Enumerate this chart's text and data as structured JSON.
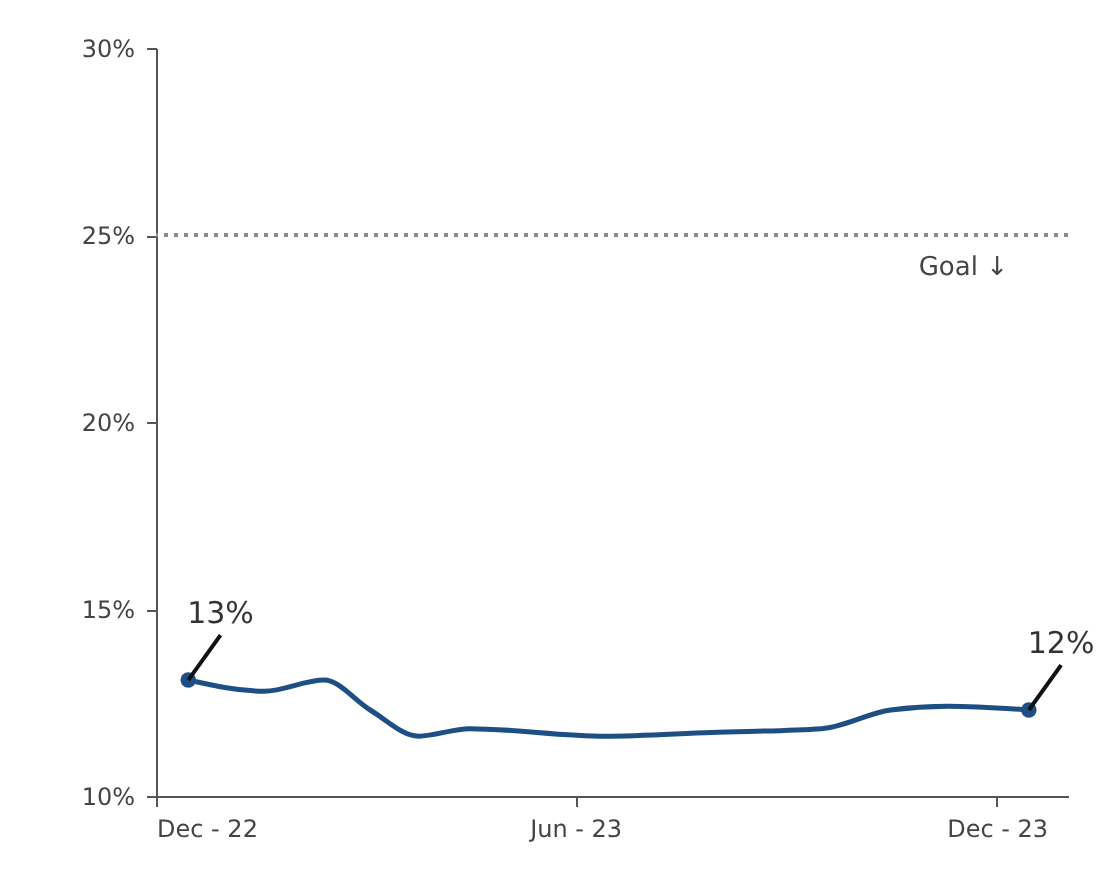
{
  "chart_data": {
    "type": "line",
    "x": [
      "2022-12-15",
      "2023-01-17",
      "2023-02-12",
      "2023-03-04",
      "2023-03-25",
      "2023-04-16",
      "2023-06-14",
      "2023-07-30",
      "2023-09-16",
      "2023-10-16",
      "2023-11-10",
      "2023-12-15"
    ],
    "series": [
      {
        "color": "#1d4f85",
        "values": [
          13.1,
          12.8,
          13.1,
          12.3,
          11.6,
          11.8,
          11.6,
          11.7,
          11.8,
          12.3,
          12.4,
          12.3
        ]
      }
    ],
    "xlim": [
      "2022-12-01",
      "2024-01-01"
    ],
    "xticks": [
      {
        "value": "2022-12-01",
        "label": "Dec - 22"
      },
      {
        "value": "2023-06-01",
        "label": "Jun - 23"
      },
      {
        "value": "2023-12-01",
        "label": "Dec - 23"
      }
    ],
    "ylim": [
      10,
      30
    ],
    "yticks": [
      {
        "value": 10,
        "label": "10%"
      },
      {
        "value": 15,
        "label": "15%"
      },
      {
        "value": 20,
        "label": "20%"
      },
      {
        "value": 25,
        "label": "25%"
      },
      {
        "value": 30,
        "label": "30%"
      }
    ],
    "ref_lines": [
      {
        "axis": "y",
        "value": 25,
        "label": "Goal ↓",
        "color": "#8c8c8c",
        "line_style": "dotted"
      }
    ],
    "annotations": [
      {
        "text": "13%",
        "x": "2022-12-15",
        "y": 13.1
      },
      {
        "text": "12%",
        "x": "2023-12-15",
        "y": 12.3
      }
    ],
    "grid": false
  }
}
